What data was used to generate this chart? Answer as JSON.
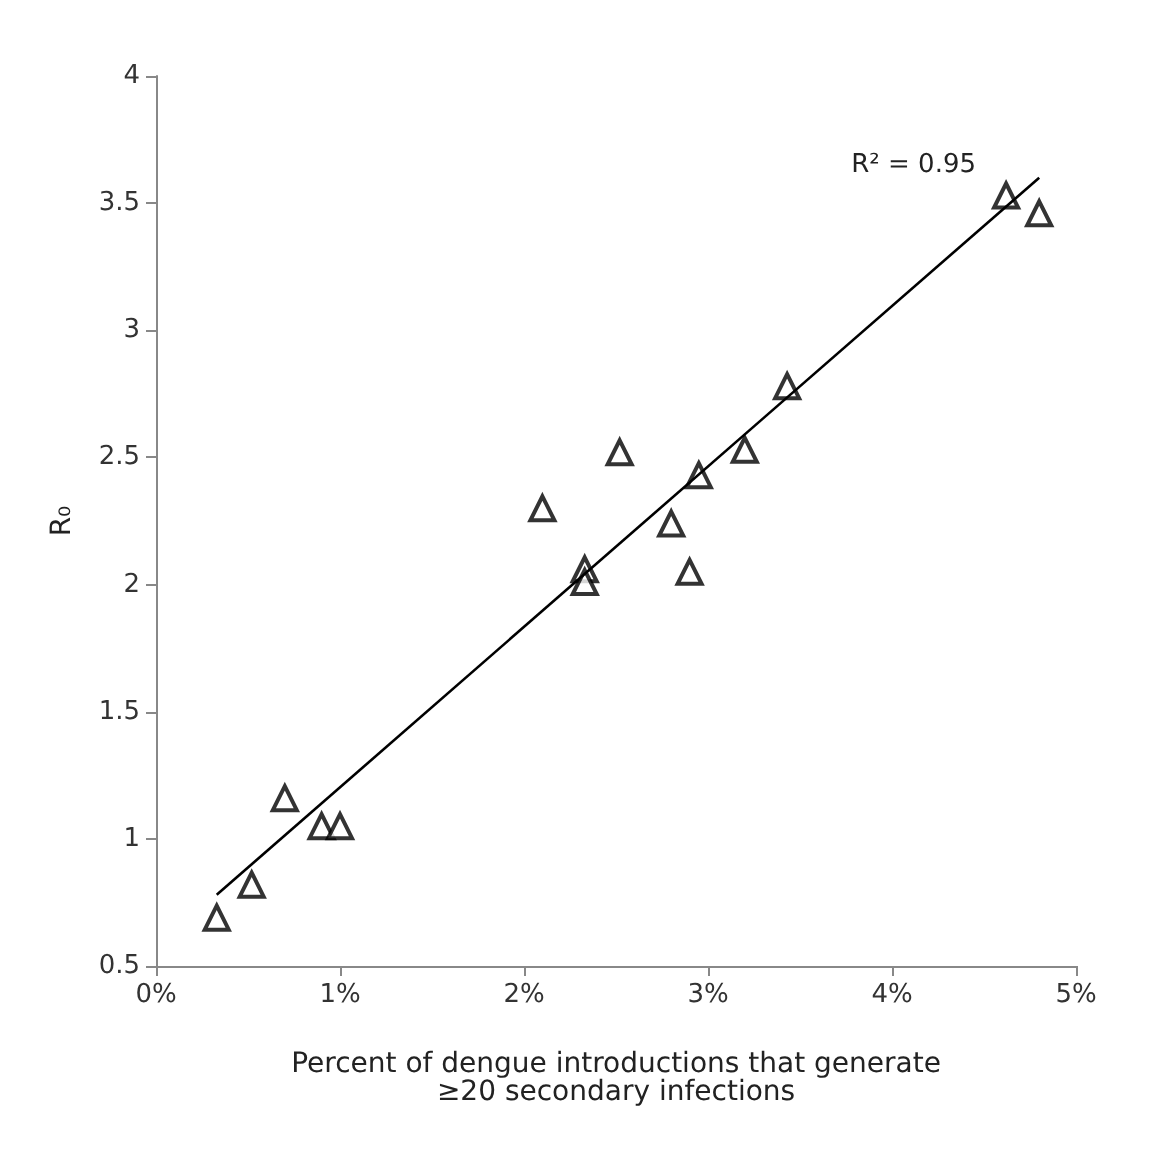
{
  "chart_data": {
    "type": "scatter",
    "xlabel": "Percent of dengue introductions that generate\n≥20 secondary infections",
    "ylabel": "R₀",
    "x": [
      0.33,
      0.52,
      0.7,
      0.9,
      1.0,
      2.1,
      2.33,
      2.33,
      2.52,
      2.8,
      2.9,
      2.95,
      3.2,
      3.43,
      4.62,
      4.8
    ],
    "series": [
      {
        "color": "#000000",
        "marker": "triangle",
        "values": [
          0.69,
          0.82,
          1.16,
          1.05,
          1.05,
          2.3,
          2.06,
          2.01,
          2.52,
          2.24,
          2.05,
          2.43,
          2.53,
          2.78,
          3.53,
          3.46
        ]
      },
      {
        "type": "line",
        "color": "#000000",
        "marker": "none",
        "x": [
          0.33,
          4.8
        ],
        "values": [
          0.78,
          3.6
        ]
      }
    ],
    "xlim": [
      0,
      5
    ],
    "xticks": [
      {
        "value": 0,
        "label": "0%"
      },
      {
        "value": 1,
        "label": "1%"
      },
      {
        "value": 2,
        "label": "2%"
      },
      {
        "value": 3,
        "label": "3%"
      },
      {
        "value": 4,
        "label": "4%"
      },
      {
        "value": 5,
        "label": "5%"
      }
    ],
    "ylim": [
      0.5,
      4
    ],
    "yticks": [
      0.5,
      1,
      1.5,
      2,
      2.5,
      3,
      3.5,
      4
    ],
    "annotations": [
      "R² = 0.95"
    ],
    "grid": false
  }
}
